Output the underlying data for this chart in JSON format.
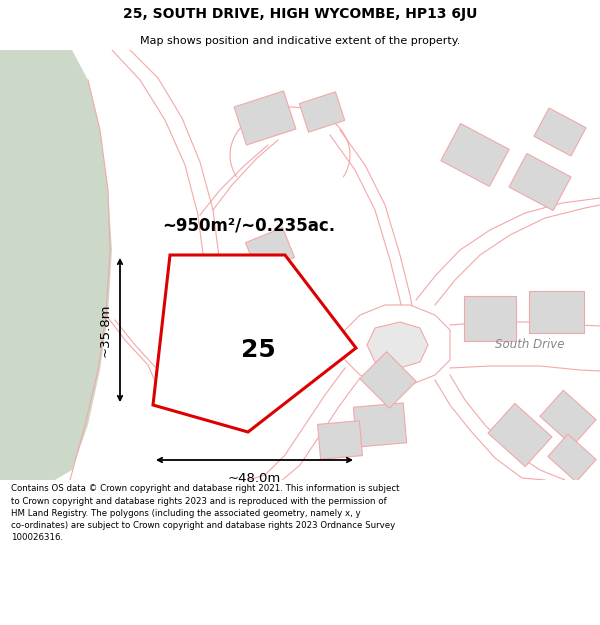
{
  "title": "25, SOUTH DRIVE, HIGH WYCOMBE, HP13 6JU",
  "subtitle": "Map shows position and indicative extent of the property.",
  "footer": "Contains OS data © Crown copyright and database right 2021. This information is subject to Crown copyright and database rights 2023 and is reproduced with the permission of HM Land Registry. The polygons (including the associated geometry, namely x, y co-ordinates) are subject to Crown copyright and database rights 2023 Ordnance Survey 100026316.",
  "map_bg": "#ffffff",
  "green_color": "#ccd9c8",
  "road_color": "#f2a8a8",
  "building_fill": "#d8d8d8",
  "building_edge": "#f2a8a8",
  "property_edge": "#dd0000",
  "property_fill": "#ffffff",
  "title_fs": 10,
  "subtitle_fs": 8,
  "footer_fs": 6.2,
  "area_label": "~950m²/~0.235ac.",
  "num_label": "25",
  "width_label": "~48.0m",
  "height_label": "~35.8m",
  "road_label": "South Drive"
}
